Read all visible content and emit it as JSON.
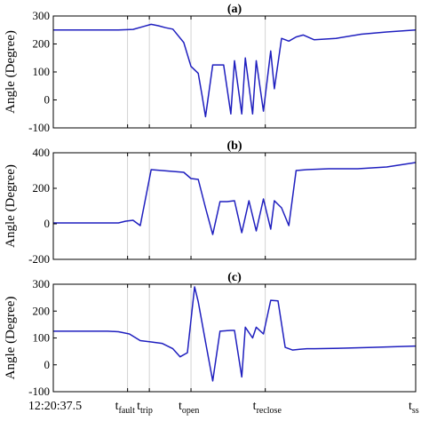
{
  "chart_data": [
    {
      "type": "line",
      "title": "(a)",
      "ylabel": "Angle (Degree)",
      "ylim": [
        -100,
        300
      ],
      "yticks": [
        -100,
        0,
        100,
        200,
        300
      ],
      "grid": "vertical",
      "series": [
        {
          "color": "#1f1fbf",
          "x": [
            0,
            0.15,
            0.18,
            0.22,
            0.25,
            0.27,
            0.29,
            0.31,
            0.33,
            0.36,
            0.38,
            0.4,
            0.41,
            0.42,
            0.44,
            0.46,
            0.47,
            0.49,
            0.5,
            0.52,
            0.53,
            0.55,
            0.56,
            0.58,
            0.6,
            0.61,
            0.63,
            0.65,
            0.67,
            0.69,
            0.72,
            0.78,
            0.85,
            0.92,
            1.0
          ],
          "y": [
            250,
            250,
            250,
            252,
            263,
            270,
            265,
            258,
            253,
            205,
            120,
            95,
            20,
            -60,
            125,
            125,
            125,
            -50,
            140,
            -50,
            150,
            -50,
            140,
            -40,
            175,
            40,
            220,
            210,
            225,
            232,
            215,
            220,
            235,
            243,
            250
          ]
        }
      ]
    },
    {
      "type": "line",
      "title": "(b)",
      "ylabel": "Angle (Degree)",
      "ylim": [
        -200,
        400
      ],
      "yticks": [
        -200,
        0,
        200,
        400
      ],
      "grid": "vertical",
      "series": [
        {
          "color": "#1f1fbf",
          "x": [
            0,
            0.15,
            0.18,
            0.2,
            0.22,
            0.24,
            0.27,
            0.3,
            0.33,
            0.36,
            0.38,
            0.4,
            0.42,
            0.44,
            0.46,
            0.48,
            0.5,
            0.52,
            0.54,
            0.56,
            0.58,
            0.6,
            0.61,
            0.63,
            0.65,
            0.67,
            0.7,
            0.76,
            0.84,
            0.92,
            1.0
          ],
          "y": [
            5,
            5,
            5,
            15,
            20,
            -10,
            305,
            300,
            295,
            290,
            255,
            250,
            90,
            -60,
            125,
            125,
            130,
            -50,
            130,
            -40,
            140,
            -30,
            130,
            90,
            -10,
            300,
            305,
            310,
            310,
            320,
            345
          ]
        }
      ]
    },
    {
      "type": "line",
      "title": "(c)",
      "ylabel": "Angle (Degree)",
      "ylim": [
        -100,
        300
      ],
      "yticks": [
        -100,
        0,
        100,
        200,
        300
      ],
      "grid": "vertical",
      "series": [
        {
          "color": "#1f1fbf",
          "x": [
            0,
            0.15,
            0.18,
            0.21,
            0.24,
            0.27,
            0.3,
            0.33,
            0.35,
            0.37,
            0.39,
            0.4,
            0.42,
            0.44,
            0.46,
            0.49,
            0.5,
            0.52,
            0.53,
            0.55,
            0.56,
            0.58,
            0.6,
            0.62,
            0.64,
            0.66,
            0.68,
            0.7,
            0.72,
            0.8,
            0.88,
            1.0
          ],
          "y": [
            125,
            125,
            123,
            115,
            90,
            85,
            80,
            60,
            30,
            45,
            290,
            235,
            85,
            -60,
            125,
            128,
            128,
            -45,
            140,
            100,
            140,
            115,
            240,
            238,
            65,
            55,
            58,
            60,
            60,
            62,
            65,
            70
          ]
        }
      ]
    }
  ],
  "x_axis": {
    "ticks": [
      {
        "main": "12:20:37.5",
        "sub": "",
        "pos": 0.0
      },
      {
        "main": "t",
        "sub": "fault",
        "pos": 0.205
      },
      {
        "main": "t",
        "sub": "trip",
        "pos": 0.265
      },
      {
        "main": "t",
        "sub": "open",
        "pos": 0.38
      },
      {
        "main": "t",
        "sub": "reclose",
        "pos": 0.585
      },
      {
        "main": "t",
        "sub": "ss",
        "pos": 1.0
      }
    ]
  }
}
